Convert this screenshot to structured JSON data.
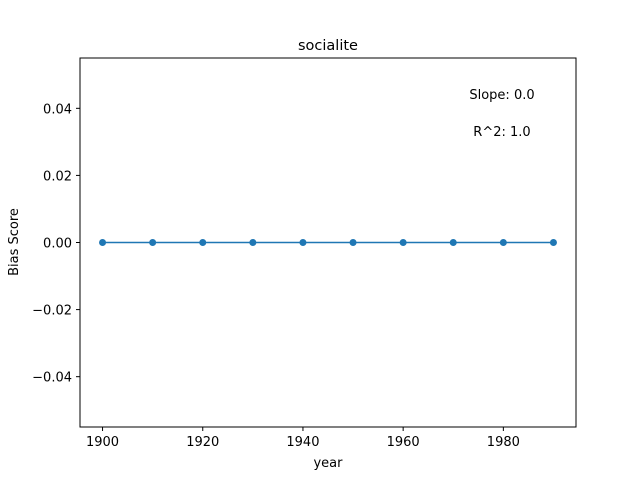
{
  "chart_data": {
    "type": "line",
    "title": "socialite",
    "xlabel": "year",
    "ylabel": "Bias Score",
    "xlim": [
      1895.5,
      1994.5
    ],
    "ylim": [
      -0.055,
      0.055
    ],
    "x_ticks": [
      1900,
      1920,
      1940,
      1960,
      1980
    ],
    "x_tick_labels": [
      "1900",
      "1920",
      "1940",
      "1960",
      "1980"
    ],
    "y_ticks": [
      -0.04,
      -0.02,
      0.0,
      0.02,
      0.04
    ],
    "y_tick_labels": [
      "−0.04",
      "−0.02",
      "0.00",
      "0.02",
      "0.04"
    ],
    "grid": false,
    "series": [
      {
        "color": "#1f77b4",
        "marker": "circle",
        "x": [
          1900,
          1910,
          1920,
          1930,
          1940,
          1950,
          1960,
          1970,
          1980,
          1990
        ],
        "y": [
          0,
          0,
          0,
          0,
          0,
          0,
          0,
          0,
          0,
          0
        ]
      }
    ],
    "annotations": [
      {
        "text": "Slope: 0.0"
      },
      {
        "text": "R^2: 1.0"
      }
    ]
  }
}
